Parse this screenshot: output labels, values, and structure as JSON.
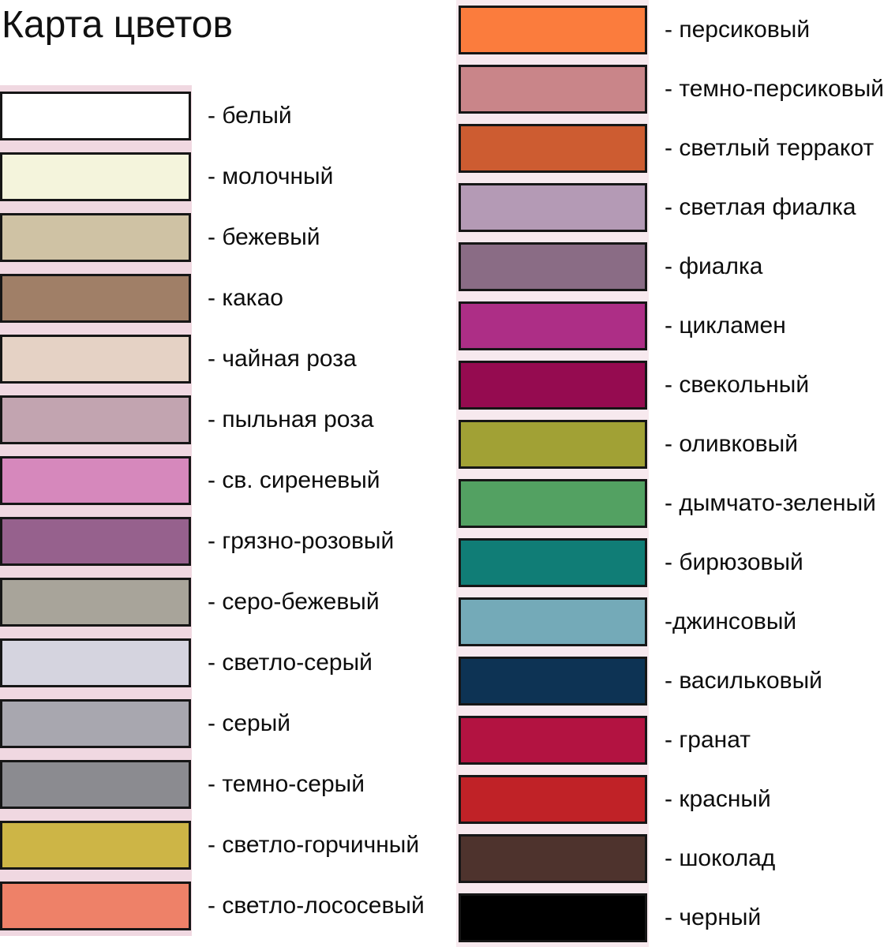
{
  "title": "Карта цветов",
  "colors": {
    "page_background": "#ffffff",
    "band_left_pink": "#f0d8e1",
    "band_right_pink": "#f7e9ee",
    "swatch_border": "#161616",
    "text": "#0d0d0d"
  },
  "left_column": {
    "items": [
      {
        "label": "- белый",
        "color": "#ffffff"
      },
      {
        "label": "- молочный",
        "color": "#f4f4dc"
      },
      {
        "label": "- бежевый",
        "color": "#cfc2a4"
      },
      {
        "label": "- какао",
        "color": "#a07f67"
      },
      {
        "label": "- чайная роза",
        "color": "#e5d2c5"
      },
      {
        "label": "- пыльная роза",
        "color": "#c2a4b0"
      },
      {
        "label": "- св. сиреневый",
        "color": "#d688bc"
      },
      {
        "label": "- грязно-розовый",
        "color": "#96618d"
      },
      {
        "label": "- серо-бежевый",
        "color": "#a8a49a"
      },
      {
        "label": "- светло-серый",
        "color": "#d5d4df"
      },
      {
        "label": "- серый",
        "color": "#a8a7af"
      },
      {
        "label": "- темно-серый",
        "color": "#8b8b90"
      },
      {
        "label": "- светло-горчичный",
        "color": "#cdb546"
      },
      {
        "label": "- светло-лососевый",
        "color": "#ee8168"
      }
    ]
  },
  "right_column": {
    "items": [
      {
        "label": "- персиковый",
        "color": "#fb7c3d"
      },
      {
        "label": "- темно-персиковый",
        "color": "#c98589"
      },
      {
        "label": "- светлый терракот",
        "color": "#cd5c31"
      },
      {
        "label": "- светлая фиалка",
        "color": "#b49ab5"
      },
      {
        "label": "- фиалка",
        "color": "#8a6c85"
      },
      {
        "label": "- цикламен",
        "color": "#ad2e86"
      },
      {
        "label": "- свекольный",
        "color": "#950b50"
      },
      {
        "label": "- оливковый",
        "color": "#a1a135"
      },
      {
        "label": "- дымчато-зеленый",
        "color": "#53a162"
      },
      {
        "label": "- бирюзовый",
        "color": "#107d76"
      },
      {
        "label": "-джинсовый",
        "color": "#74aab8"
      },
      {
        "label": "- васильковый",
        "color": "#0d3354"
      },
      {
        "label": "- гранат",
        "color": "#b31341"
      },
      {
        "label": "- красный",
        "color": "#c02227"
      },
      {
        "label": "- шоколад",
        "color": "#4e332d"
      },
      {
        "label": "- черный",
        "color": "#000000"
      }
    ]
  }
}
